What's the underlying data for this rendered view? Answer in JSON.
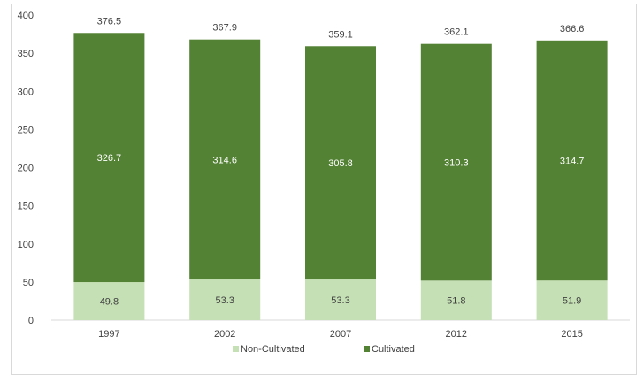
{
  "chart_data": {
    "type": "bar",
    "stacked": true,
    "categories": [
      "1997",
      "2002",
      "2007",
      "2012",
      "2015"
    ],
    "series": [
      {
        "name": "Non-Cultivated",
        "values": [
          49.8,
          53.3,
          53.3,
          51.8,
          51.9
        ],
        "color": "#c5e0b4"
      },
      {
        "name": "Cultivated",
        "values": [
          326.7,
          314.6,
          305.8,
          310.3,
          314.7
        ],
        "color": "#548235"
      }
    ],
    "totals": [
      376.5,
      367.9,
      359.1,
      362.1,
      366.6
    ],
    "total_labels": [
      "376.5",
      "367.9",
      "359.1",
      "362.1",
      "366.6"
    ],
    "ylim": [
      0,
      400
    ],
    "yticks": [
      0,
      50,
      100,
      150,
      200,
      250,
      300,
      350,
      400
    ],
    "grid": false,
    "legend": "bottom-center"
  }
}
